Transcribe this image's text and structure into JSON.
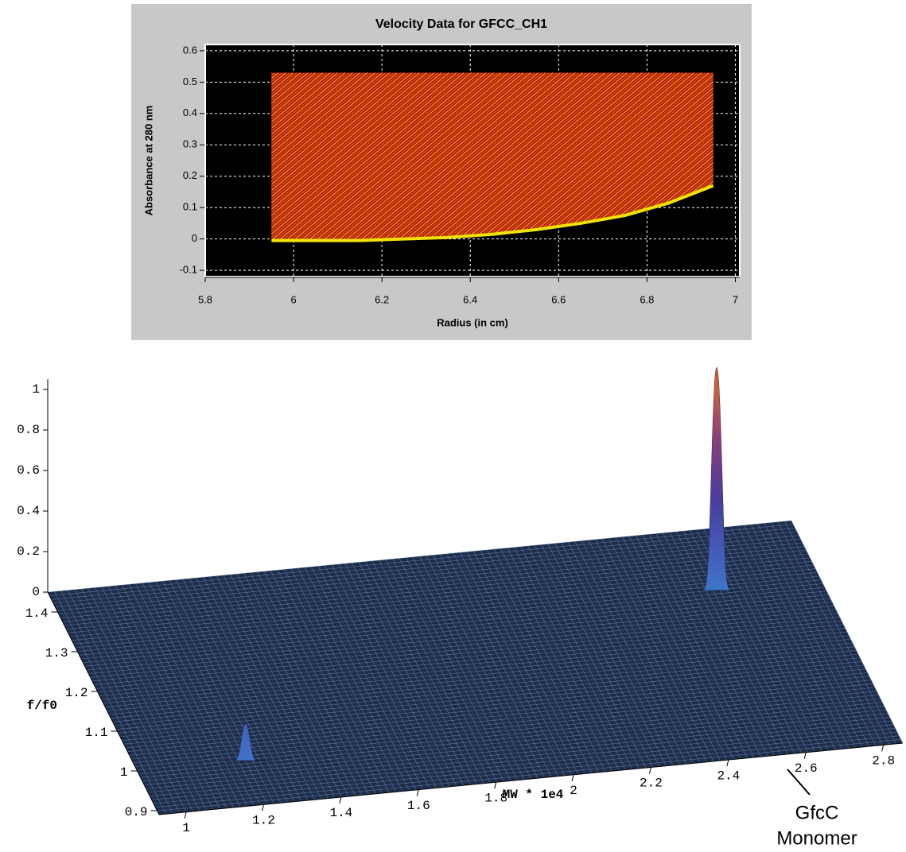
{
  "chart_data": [
    {
      "type": "band",
      "title": "Velocity Data for GFCC_CH1",
      "xlabel": "Radius (in cm)",
      "ylabel": "Absorbance at 280 nm",
      "x": [
        5.95,
        6.05,
        6.15,
        6.25,
        6.35,
        6.45,
        6.55,
        6.65,
        6.75,
        6.85,
        6.95
      ],
      "high": [
        0.53,
        0.53,
        0.53,
        0.53,
        0.53,
        0.53,
        0.53,
        0.53,
        0.53,
        0.53,
        0.53
      ],
      "low": [
        0,
        0,
        0,
        0.005,
        0.01,
        0.02,
        0.035,
        0.055,
        0.08,
        0.12,
        0.175
      ],
      "color": "#ee2222",
      "edge_color": "#f2e200",
      "xlim": [
        5.8,
        7.01
      ],
      "ylim": [
        -0.12,
        0.62
      ],
      "xticks": [
        5.8,
        6,
        6.2,
        6.4,
        6.6,
        6.8,
        7
      ],
      "yticks": [
        -0.1,
        0,
        0.1,
        0.2,
        0.3,
        0.4,
        0.5,
        0.6
      ],
      "grid": true
    },
    {
      "type": "surface3d",
      "xlabel": "MW * 1e4",
      "ylabel": "f/f0",
      "annotation": [
        "GfcC",
        "Monomer"
      ],
      "xlim": [
        0.93,
        2.85
      ],
      "ylim": [
        0.89,
        1.45
      ],
      "zlim": [
        0,
        1.05
      ],
      "xticks": [
        1,
        1.2,
        1.4,
        1.6,
        1.8,
        2,
        2.2,
        2.4,
        2.6,
        2.8
      ],
      "yticks": [
        0.9,
        1,
        1.1,
        1.2,
        1.3,
        1.4
      ],
      "zticks": [
        0,
        0.2,
        0.4,
        0.6,
        0.8,
        1
      ],
      "peaks": {
        "x": [
          2.58,
          1.21
        ],
        "y": [
          1.3,
          1.0
        ],
        "z": [
          1.1,
          0.18
        ]
      },
      "color": "#1e2d4a"
    }
  ]
}
